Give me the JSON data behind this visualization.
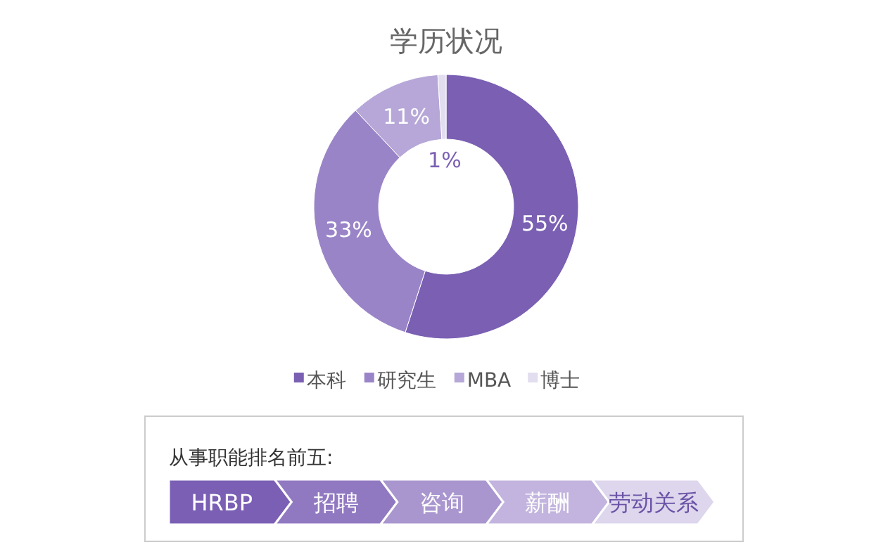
{
  "chart_data": [
    {
      "type": "donut",
      "title": "学历状况",
      "categories": [
        "本科",
        "研究生",
        "MBA",
        "博士"
      ],
      "values": [
        55,
        33,
        11,
        1
      ],
      "colors": [
        "#7a5fb3",
        "#9a84c8",
        "#b6a7d8",
        "#e2ddef"
      ],
      "value_labels": [
        "55%",
        "33%",
        "11%",
        "1%"
      ],
      "legend": "bottom"
    },
    {
      "type": "other",
      "title": "从事职能排名前五:",
      "categories": [
        "HRBP",
        "招聘",
        "咨询",
        "薪酬",
        "劳动关系"
      ],
      "colors": [
        "#7b5fb4",
        "#9179c2",
        "#a996cf",
        "#c2b4de",
        "#ddd6ed"
      ]
    }
  ]
}
